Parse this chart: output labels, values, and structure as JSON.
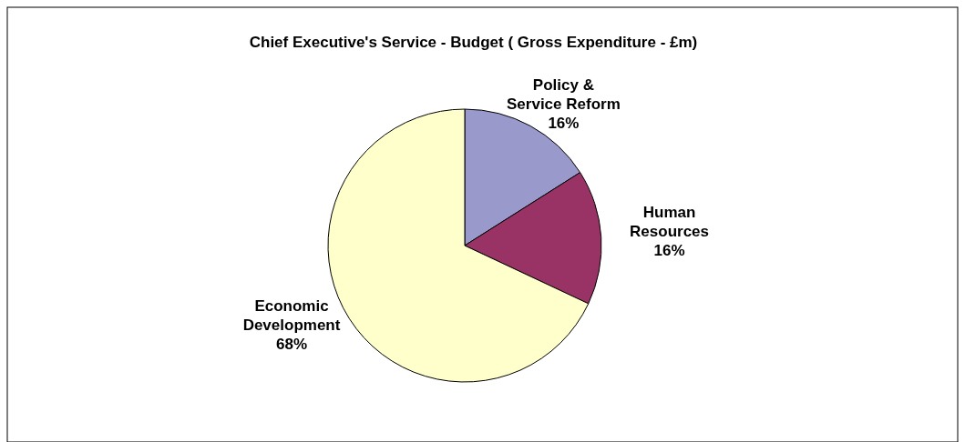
{
  "chart_data": {
    "type": "pie",
    "title": "Chief Executive's Service - Budget ( Gross Expenditure - £m)",
    "categories": [
      "Policy & Service Reform",
      "Human Resources",
      "Economic Development"
    ],
    "values": [
      16,
      16,
      68
    ],
    "value_labels": [
      "16%",
      "16%",
      "68%"
    ],
    "colors": [
      "#9999cc",
      "#993366",
      "#ffffcc"
    ],
    "legend": false
  }
}
